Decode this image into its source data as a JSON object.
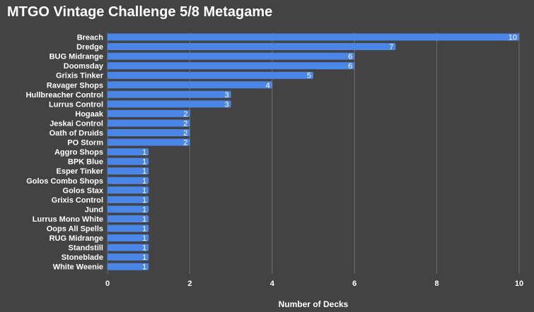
{
  "chart_data": {
    "type": "bar",
    "orientation": "horizontal",
    "title": "MTGO Vintage Challenge 5/8 Metagame",
    "xlabel": "Number of Decks",
    "ylabel": "",
    "xlim": [
      0,
      10
    ],
    "xticks": [
      "0",
      "2",
      "4",
      "6",
      "8",
      "10"
    ],
    "grid": "vertical",
    "legend": "none",
    "categories": [
      "Breach",
      "Dredge",
      "BUG Midrange",
      "Doomsday",
      "Grixis Tinker",
      "Ravager Shops",
      "Hullbreacher Control",
      "Lurrus Control",
      "Hogaak",
      "Jeskai Control",
      "Oath of Druids",
      "PO Storm",
      "Aggro Shops",
      "BPK Blue",
      "Esper Tinker",
      "Golos Combo Shops",
      "Golos Stax",
      "Grixis Control",
      "Jund",
      "Lurrus Mono White",
      "Oops All Spells",
      "RUG Midrange",
      "Standstill",
      "Stoneblade",
      "White Weenie"
    ],
    "values": [
      10,
      7,
      6,
      6,
      5,
      4,
      3,
      3,
      2,
      2,
      2,
      2,
      1,
      1,
      1,
      1,
      1,
      1,
      1,
      1,
      1,
      1,
      1,
      1,
      1
    ],
    "colors": {
      "background": "#434343",
      "bar": "#4a86e8",
      "grid": "#6f6f6f",
      "text": "#ffffff"
    }
  }
}
